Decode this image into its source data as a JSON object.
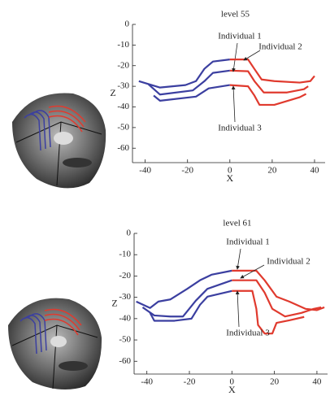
{
  "chart_data": [
    {
      "type": "line",
      "title": "level 55",
      "xlabel": "X",
      "ylabel": "Z",
      "xlim": [
        -46,
        45
      ],
      "ylim": [
        -67,
        0
      ],
      "xticks": [
        -40,
        -20,
        0,
        20,
        40
      ],
      "yticks": [
        0,
        -10,
        -20,
        -30,
        -40,
        -50,
        -60
      ],
      "left_color": "#3b3fa0",
      "right_color": "#e03a2e",
      "series": [
        {
          "name": "Individual 1",
          "x": [
            -38.5,
            -33,
            -17.5,
            -12,
            -8,
            0,
            8.6,
            11.6,
            16,
            27,
            35,
            37
          ],
          "values": [
            -29,
            -34,
            -32,
            -27.5,
            -23.5,
            -22.4,
            -22.7,
            -27.5,
            -33,
            -33,
            -31.4,
            -30
          ]
        },
        {
          "name": "Individual 2",
          "x": [
            -43,
            -33,
            -21,
            -16,
            -12,
            -8,
            0,
            8.6,
            11.6,
            15,
            21,
            33,
            38,
            40
          ],
          "values": [
            -27.5,
            -30.6,
            -29.4,
            -27.5,
            -21.5,
            -18,
            -17,
            -17,
            -21.6,
            -26.7,
            -27.5,
            -28.2,
            -27.5,
            -25
          ]
        },
        {
          "name": "Individual 3",
          "x": [
            -36,
            -33,
            -16,
            -10,
            0,
            8.6,
            11.6,
            14,
            21,
            33,
            36
          ],
          "values": [
            -34.5,
            -37,
            -35,
            -31,
            -29.4,
            -30,
            -34.5,
            -39,
            -39,
            -35.3,
            -33.7
          ]
        }
      ]
    },
    {
      "type": "line",
      "title": "level 61",
      "xlabel": "X",
      "ylabel": "Z",
      "xlim": [
        -46,
        45
      ],
      "ylim": [
        -66,
        0
      ],
      "xticks": [
        -40,
        -20,
        0,
        20,
        40
      ],
      "yticks": [
        0,
        -10,
        -20,
        -30,
        -40,
        -50,
        -60
      ],
      "left_color": "#3b3fa0",
      "right_color": "#e03a2e",
      "series": [
        {
          "name": "Individual 1",
          "x": [
            -45,
            -38.5,
            -34.6,
            -29,
            -21,
            -15,
            -9.6,
            0,
            11.5,
            15.4,
            21,
            27,
            34.6,
            40,
            43.5
          ],
          "values": [
            -32,
            -35,
            -32,
            -31,
            -26,
            -22,
            -19.4,
            -17.5,
            -17.5,
            -22,
            -29.7,
            -32,
            -35.4,
            -36,
            -34.7
          ]
        },
        {
          "name": "Individual 2",
          "x": [
            -42,
            -36.5,
            -29,
            -23,
            -17,
            -11.5,
            0,
            11.5,
            15.4,
            19,
            25,
            32.7,
            38.5,
            42
          ],
          "values": [
            -34.7,
            -38.5,
            -39,
            -39,
            -31.6,
            -26,
            -22,
            -22,
            -27.8,
            -35.4,
            -39,
            -37.3,
            -35.4,
            -34.7
          ]
        },
        {
          "name": "Individual 3",
          "x": [
            -38.5,
            -36.5,
            -27,
            -19,
            -15,
            -11.5,
            0,
            9.6,
            11.5,
            12.3,
            15.4,
            19,
            21,
            27,
            34
          ],
          "values": [
            -37.3,
            -41,
            -41,
            -40,
            -33.5,
            -29.7,
            -27,
            -27,
            -35.4,
            -43,
            -47,
            -47,
            -42,
            -40.8,
            -39.2
          ]
        }
      ]
    }
  ]
}
